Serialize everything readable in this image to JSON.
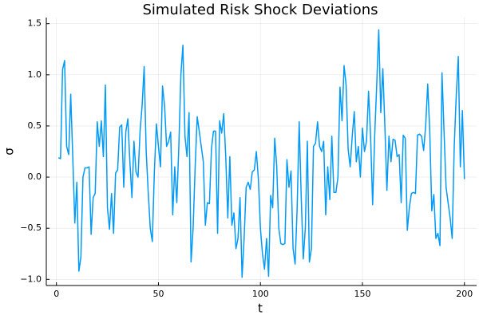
{
  "chart_data": {
    "type": "line",
    "title": "Simulated Risk Shock Deviations",
    "x_label": "t",
    "y_label": "σ",
    "x": [
      1,
      2,
      3,
      4,
      5,
      6,
      7,
      8,
      9,
      10,
      11,
      12,
      13,
      14,
      15,
      16,
      17,
      18,
      19,
      20,
      21,
      22,
      23,
      24,
      25,
      26,
      27,
      28,
      29,
      30,
      31,
      32,
      33,
      34,
      35,
      36,
      37,
      38,
      39,
      40,
      41,
      42,
      43,
      44,
      45,
      46,
      47,
      48,
      49,
      50,
      51,
      52,
      53,
      54,
      55,
      56,
      57,
      58,
      59,
      60,
      61,
      62,
      63,
      64,
      65,
      66,
      67,
      68,
      69,
      70,
      71,
      72,
      73,
      74,
      75,
      76,
      77,
      78,
      79,
      80,
      81,
      82,
      83,
      84,
      85,
      86,
      87,
      88,
      89,
      90,
      91,
      92,
      93,
      94,
      95,
      96,
      97,
      98,
      99,
      100,
      101,
      102,
      103,
      104,
      105,
      106,
      107,
      108,
      109,
      110,
      111,
      112,
      113,
      114,
      115,
      116,
      117,
      118,
      119,
      120,
      121,
      122,
      123,
      124,
      125,
      126,
      127,
      128,
      129,
      130,
      131,
      132,
      133,
      134,
      135,
      136,
      137,
      138,
      139,
      140,
      141,
      142,
      143,
      144,
      145,
      146,
      147,
      148,
      149,
      150,
      151,
      152,
      153,
      154,
      155,
      156,
      157,
      158,
      159,
      160,
      161,
      162,
      163,
      164,
      165,
      166,
      167,
      168,
      169,
      170,
      171,
      172,
      173,
      174,
      175,
      176,
      177,
      178,
      179,
      180,
      181,
      182,
      183,
      184,
      185,
      186,
      187,
      188,
      189,
      190,
      191,
      192,
      193,
      194,
      195,
      196,
      197,
      198,
      199,
      200
    ],
    "series": [
      {
        "color": "#009af9",
        "values": [
          0.19,
          0.18,
          1.05,
          1.14,
          0.3,
          0.22,
          0.81,
          0.2,
          -0.45,
          -0.05,
          -0.92,
          -0.78,
          0.0,
          0.09,
          0.09,
          0.1,
          -0.56,
          -0.2,
          -0.16,
          0.54,
          0.3,
          0.55,
          0.2,
          0.9,
          -0.3,
          -0.51,
          -0.16,
          -0.55,
          0.04,
          0.07,
          0.49,
          0.51,
          -0.1,
          0.44,
          0.57,
          0.15,
          -0.2,
          0.35,
          0.05,
          0.0,
          0.45,
          0.7,
          1.08,
          0.25,
          -0.15,
          -0.5,
          -0.63,
          0.05,
          0.52,
          0.3,
          0.1,
          0.89,
          0.7,
          0.3,
          0.35,
          0.44,
          -0.37,
          0.1,
          -0.25,
          0.3,
          1.0,
          1.29,
          0.4,
          0.2,
          0.63,
          -0.83,
          -0.5,
          0.1,
          0.59,
          0.45,
          0.3,
          0.15,
          -0.47,
          -0.25,
          -0.26,
          0.28,
          0.45,
          0.45,
          -0.55,
          0.55,
          0.43,
          0.62,
          0.2,
          -0.4,
          0.2,
          -0.47,
          -0.35,
          -0.7,
          -0.6,
          -0.2,
          -0.98,
          -0.6,
          -0.1,
          -0.05,
          -0.12,
          0.05,
          0.07,
          0.25,
          -0.02,
          -0.5,
          -0.75,
          -0.9,
          -0.6,
          -0.97,
          -0.18,
          -0.3,
          0.38,
          0.1,
          -0.5,
          -0.65,
          -0.66,
          -0.65,
          0.17,
          -0.1,
          0.06,
          -0.7,
          -0.85,
          -0.3,
          0.54,
          -0.2,
          -0.8,
          -0.5,
          0.35,
          -0.83,
          -0.7,
          0.3,
          0.33,
          0.54,
          0.3,
          0.25,
          0.35,
          -0.37,
          0.1,
          -0.22,
          0.4,
          -0.15,
          -0.15,
          0.0,
          0.88,
          0.55,
          1.09,
          0.9,
          0.27,
          0.1,
          0.4,
          0.64,
          0.15,
          0.3,
          0.0,
          0.48,
          0.25,
          0.35,
          0.84,
          0.4,
          -0.27,
          0.4,
          0.9,
          1.44,
          0.63,
          1.06,
          0.5,
          -0.13,
          0.4,
          0.15,
          0.37,
          0.36,
          0.2,
          0.22,
          -0.25,
          0.41,
          0.38,
          -0.52,
          -0.3,
          -0.16,
          -0.15,
          -0.16,
          0.41,
          0.42,
          0.4,
          0.26,
          0.5,
          0.91,
          0.45,
          -0.33,
          -0.17,
          -0.6,
          -0.55,
          -0.67,
          1.02,
          0.45,
          -0.1,
          -0.25,
          -0.4,
          -0.6,
          0.3,
          0.8,
          1.18,
          0.1,
          0.65,
          -0.02
        ]
      }
    ],
    "xlim": [
      -4.97,
      205.97
    ],
    "ylim": [
      -1.06,
      1.56
    ],
    "xticks": [
      0,
      50,
      100,
      150,
      200
    ],
    "yticks": [
      {
        "value": -1.0,
        "label": "−1.0"
      },
      {
        "value": -0.5,
        "label": "−0.5"
      },
      {
        "value": 0.0,
        "label": "0.0"
      },
      0.5,
      {
        "value": 1.0,
        "label": "1.0"
      },
      1.5
    ],
    "grid": true
  }
}
